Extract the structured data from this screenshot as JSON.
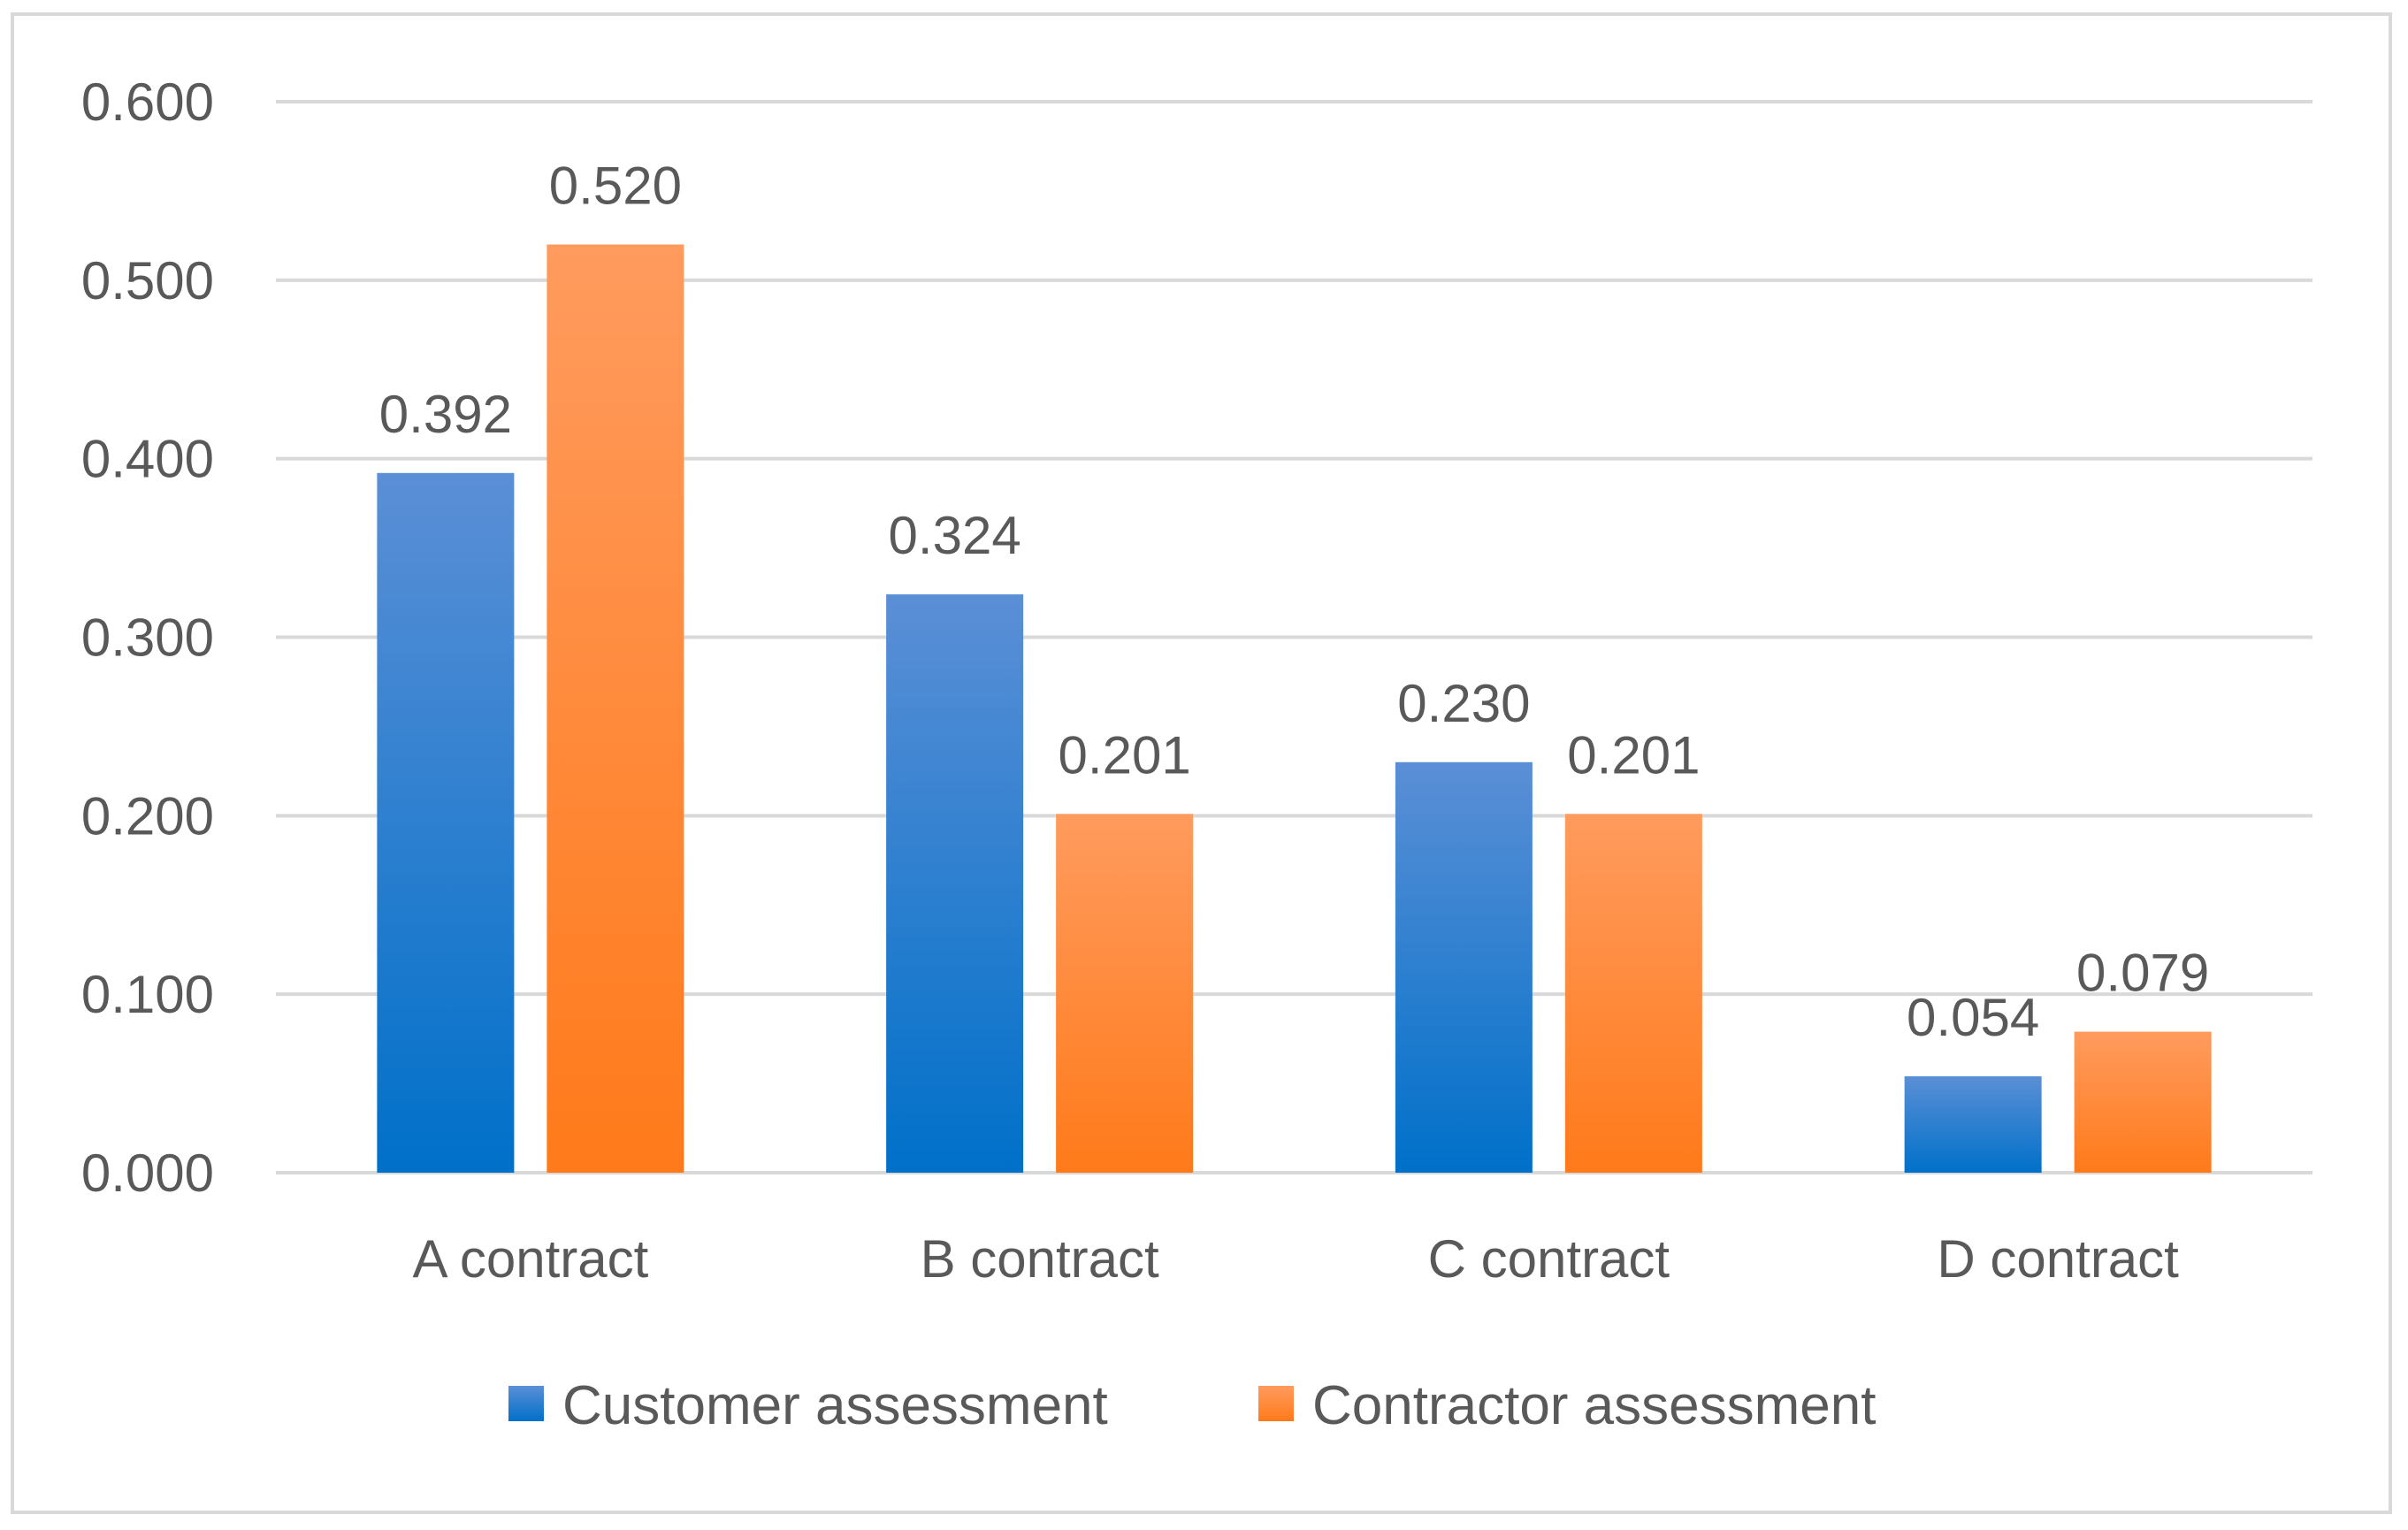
{
  "chart_data": {
    "type": "bar",
    "title": "",
    "xlabel": "",
    "ylabel": "",
    "categories": [
      "A contract",
      "B contract",
      "C contract",
      "D contract"
    ],
    "series": [
      {
        "name": "Customer assessment",
        "values": [
          0.392,
          0.324,
          0.23,
          0.054
        ],
        "labels": [
          "0.392",
          "0.324",
          "0.230",
          "0.054"
        ],
        "color_top": "#5b8fd6",
        "color_bottom": "#0070c9"
      },
      {
        "name": "Contractor assessment",
        "values": [
          0.52,
          0.201,
          0.201,
          0.079
        ],
        "labels": [
          "0.520",
          "0.201",
          "0.201",
          "0.079"
        ],
        "color_top": "#ff9b5e",
        "color_bottom": "#ff7a1a"
      }
    ],
    "ylim": [
      0,
      0.6
    ],
    "yticks": [
      0,
      0.1,
      0.2,
      0.3,
      0.4,
      0.5,
      0.6
    ],
    "ytick_labels": [
      "0.000",
      "0.100",
      "0.200",
      "0.300",
      "0.400",
      "0.500",
      "0.600"
    ],
    "grid": true,
    "legend": "bottom-center",
    "gridline_color": "#d9d9d9",
    "text_color": "#595959"
  }
}
